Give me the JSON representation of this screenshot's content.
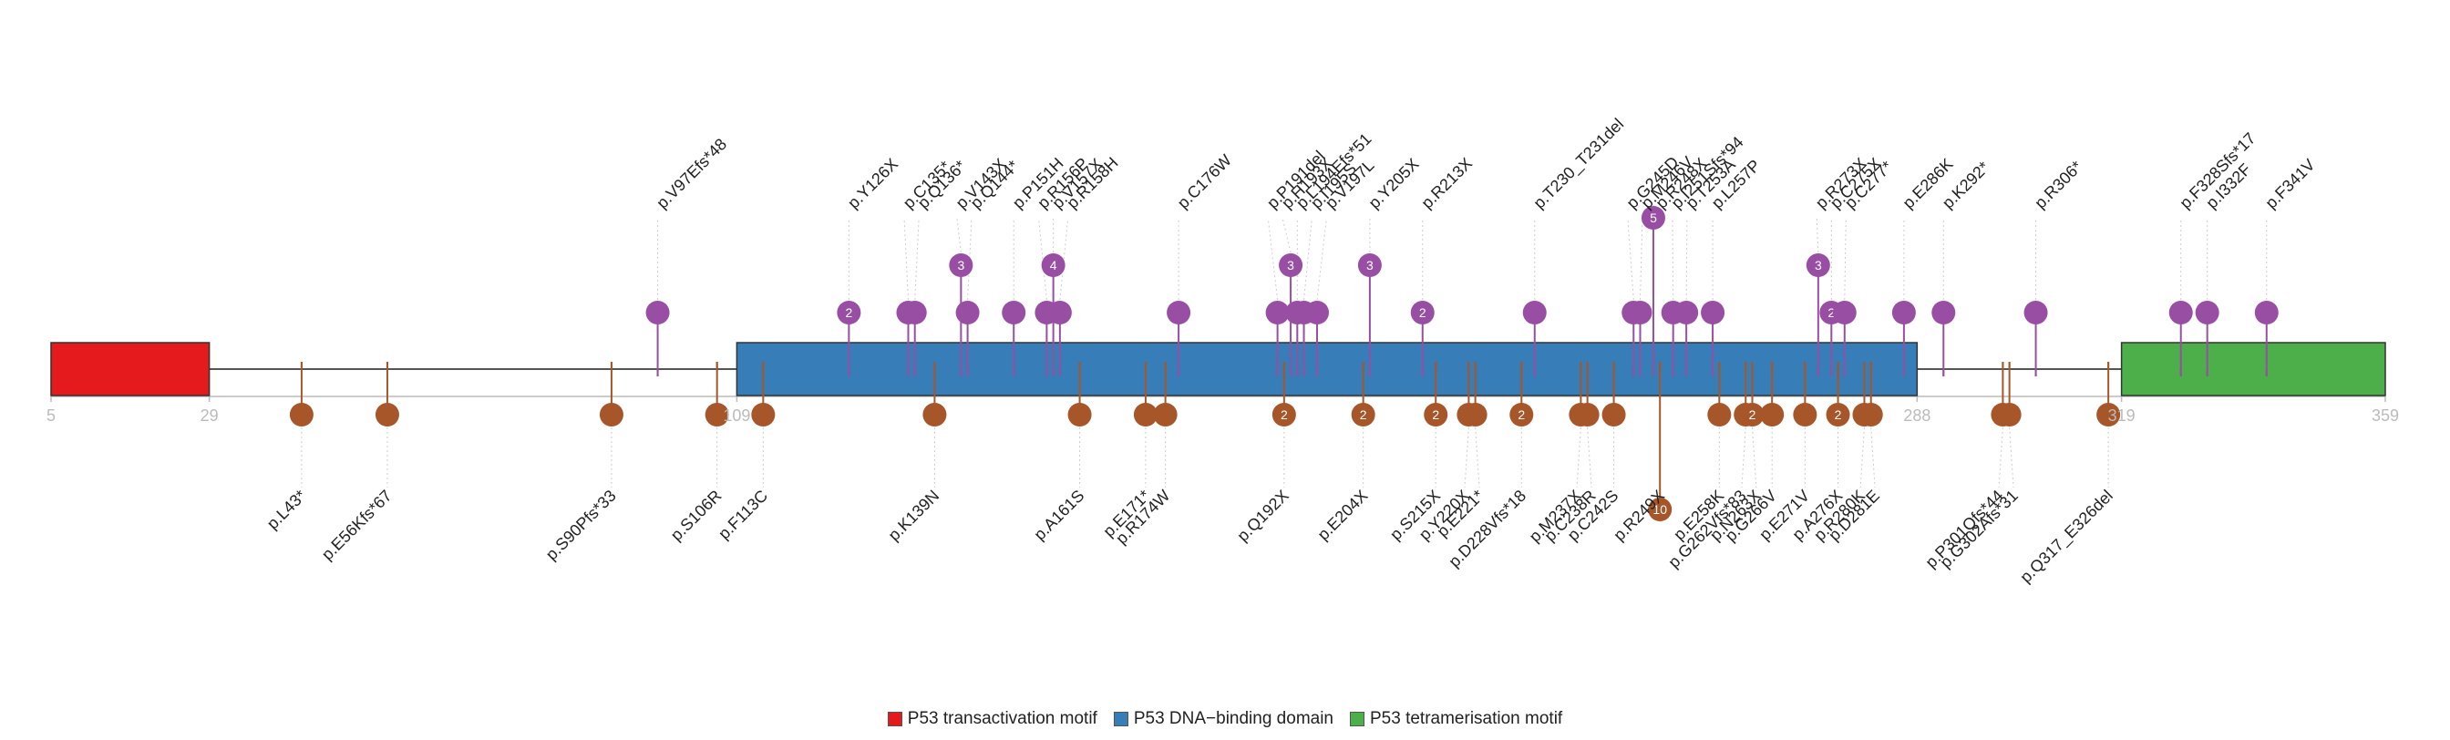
{
  "axis": {
    "range": [
      5,
      359
    ],
    "ticks": [
      "5",
      "29",
      "109",
      "288",
      "319",
      "359"
    ]
  },
  "domains": [
    {
      "name": "P53 transactivation motif",
      "start": 5,
      "end": 29,
      "color": "#E41A1C"
    },
    {
      "name": "P53 DNA−binding domain",
      "start": 109,
      "end": 288,
      "color": "#377EB8"
    },
    {
      "name": "P53 tetramerisation motif",
      "start": 319,
      "end": 359,
      "color": "#4DAF4A"
    }
  ],
  "colors": {
    "top": "#984EA3",
    "bottom": "#A65628",
    "axis_text": "#bbbbbb"
  },
  "top_mutations": [
    {
      "label": "p.V97Efs*48",
      "pos": 97,
      "count": 1
    },
    {
      "label": "p.Y126X",
      "pos": 126,
      "count": 2
    },
    {
      "label": "p.C135*",
      "pos": 135,
      "count": 1
    },
    {
      "label": "p.Q136*",
      "pos": 136,
      "count": 1
    },
    {
      "label": "p.V143X",
      "pos": 143,
      "count": 3
    },
    {
      "label": "p.Q144*",
      "pos": 144,
      "count": 1
    },
    {
      "label": "p.P151H",
      "pos": 151,
      "count": 1
    },
    {
      "label": "p.R156P",
      "pos": 156,
      "count": 1
    },
    {
      "label": "p.V157X",
      "pos": 157,
      "count": 4
    },
    {
      "label": "p.R158H",
      "pos": 158,
      "count": 1
    },
    {
      "label": "p.C176W",
      "pos": 176,
      "count": 1
    },
    {
      "label": "p.P191del",
      "pos": 191,
      "count": 1
    },
    {
      "label": "p.H193X",
      "pos": 193,
      "count": 3
    },
    {
      "label": "p.L194Efs*51",
      "pos": 194,
      "count": 1
    },
    {
      "label": "p.I195S",
      "pos": 195,
      "count": 1
    },
    {
      "label": "p.V197L",
      "pos": 197,
      "count": 1
    },
    {
      "label": "p.Y205X",
      "pos": 205,
      "count": 3
    },
    {
      "label": "p.R213X",
      "pos": 213,
      "count": 2
    },
    {
      "label": "p.T230_T231del",
      "pos": 230,
      "count": 1
    },
    {
      "label": "p.G245D",
      "pos": 245,
      "count": 1
    },
    {
      "label": "p.M246V",
      "pos": 246,
      "count": 1
    },
    {
      "label": "p.R248X",
      "pos": 248,
      "count": 5
    },
    {
      "label": "p.I251Sfs*94",
      "pos": 251,
      "count": 1
    },
    {
      "label": "p.T253A",
      "pos": 253,
      "count": 1
    },
    {
      "label": "p.L257P",
      "pos": 257,
      "count": 1
    },
    {
      "label": "p.R273X",
      "pos": 273,
      "count": 3
    },
    {
      "label": "p.C275X",
      "pos": 275,
      "count": 2
    },
    {
      "label": "p.C277*",
      "pos": 277,
      "count": 1
    },
    {
      "label": "p.E286K",
      "pos": 286,
      "count": 1
    },
    {
      "label": "p.K292*",
      "pos": 292,
      "count": 1
    },
    {
      "label": "p.R306*",
      "pos": 306,
      "count": 1
    },
    {
      "label": "p.F328Sfs*17",
      "pos": 328,
      "count": 1
    },
    {
      "label": "p.I332F",
      "pos": 332,
      "count": 1
    },
    {
      "label": "p.F341V",
      "pos": 341,
      "count": 1
    }
  ],
  "bottom_mutations": [
    {
      "label": "p.L43*",
      "pos": 43,
      "count": 1
    },
    {
      "label": "p.E56Kfs*67",
      "pos": 56,
      "count": 1
    },
    {
      "label": "p.S90Pfs*33",
      "pos": 90,
      "count": 1
    },
    {
      "label": "p.S106R",
      "pos": 106,
      "count": 1
    },
    {
      "label": "p.F113C",
      "pos": 113,
      "count": 1
    },
    {
      "label": "p.K139N",
      "pos": 139,
      "count": 1
    },
    {
      "label": "p.A161S",
      "pos": 161,
      "count": 1
    },
    {
      "label": "p.E171*",
      "pos": 171,
      "count": 1
    },
    {
      "label": "p.R174W",
      "pos": 174,
      "count": 1
    },
    {
      "label": "p.Q192X",
      "pos": 192,
      "count": 2
    },
    {
      "label": "p.E204X",
      "pos": 204,
      "count": 2
    },
    {
      "label": "p.S215X",
      "pos": 215,
      "count": 2
    },
    {
      "label": "p.Y220X",
      "pos": 220,
      "count": 2
    },
    {
      "label": "p.E221*",
      "pos": 221,
      "count": 1
    },
    {
      "label": "p.D228Vfs*18",
      "pos": 228,
      "count": 2
    },
    {
      "label": "p.M237X",
      "pos": 237,
      "count": 1
    },
    {
      "label": "p.C238R",
      "pos": 238,
      "count": 1
    },
    {
      "label": "p.C242S",
      "pos": 242,
      "count": 1
    },
    {
      "label": "p.R249X",
      "pos": 249,
      "count": 10
    },
    {
      "label": "p.E258K",
      "pos": 258,
      "count": 1
    },
    {
      "label": "p.G262Vfs*83",
      "pos": 262,
      "count": 1
    },
    {
      "label": "p.N263X",
      "pos": 263,
      "count": 2
    },
    {
      "label": "p.G266V",
      "pos": 266,
      "count": 1
    },
    {
      "label": "p.E271V",
      "pos": 271,
      "count": 1
    },
    {
      "label": "p.A276X",
      "pos": 276,
      "count": 2
    },
    {
      "label": "p.R280K",
      "pos": 280,
      "count": 1
    },
    {
      "label": "p.D281E",
      "pos": 281,
      "count": 1
    },
    {
      "label": "p.P301Qfs*44",
      "pos": 301,
      "count": 1
    },
    {
      "label": "p.G302Afs*31",
      "pos": 302,
      "count": 1
    },
    {
      "label": "p.Q317_E326del",
      "pos": 317,
      "count": 1
    }
  ]
}
